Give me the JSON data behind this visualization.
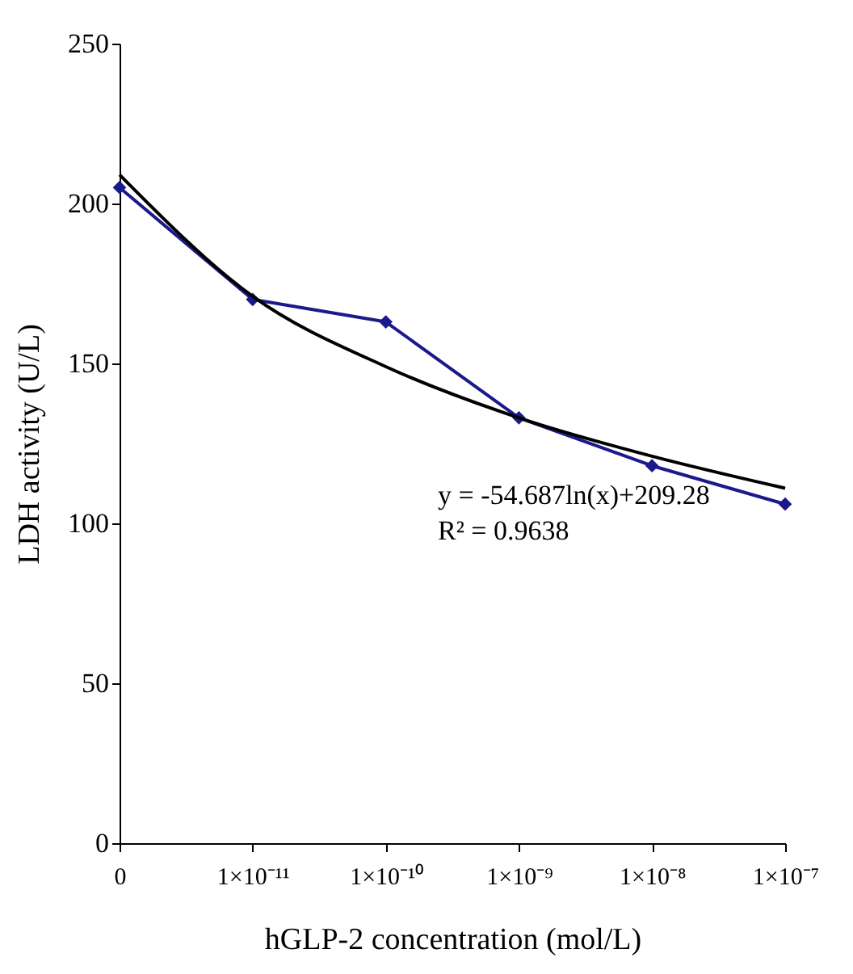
{
  "chart_data": {
    "type": "line",
    "xlabel": "hGLP-2 concentration (mol/L)",
    "ylabel": "LDH activity (U/L)",
    "categories": [
      "0",
      "1×10⁻¹¹",
      "1×10⁻¹⁰",
      "1×10⁻⁹",
      "1×10⁻⁸",
      "1×10⁻⁷"
    ],
    "series": [
      {
        "color": "#1a1a8c",
        "values": [
          205,
          170,
          163,
          133,
          118,
          106
        ],
        "marker": "diamond"
      },
      {
        "type": "line",
        "color": "#000000",
        "values": [
          209,
          171,
          149,
          133,
          121,
          111
        ],
        "marker": "none"
      }
    ],
    "ylim": [
      0,
      250
    ],
    "yticks": [
      0,
      50,
      100,
      150,
      200,
      250
    ],
    "grid": false,
    "annotations": [
      "y = -54.687ln(x)+209.28",
      "R² = 0.9638"
    ]
  }
}
